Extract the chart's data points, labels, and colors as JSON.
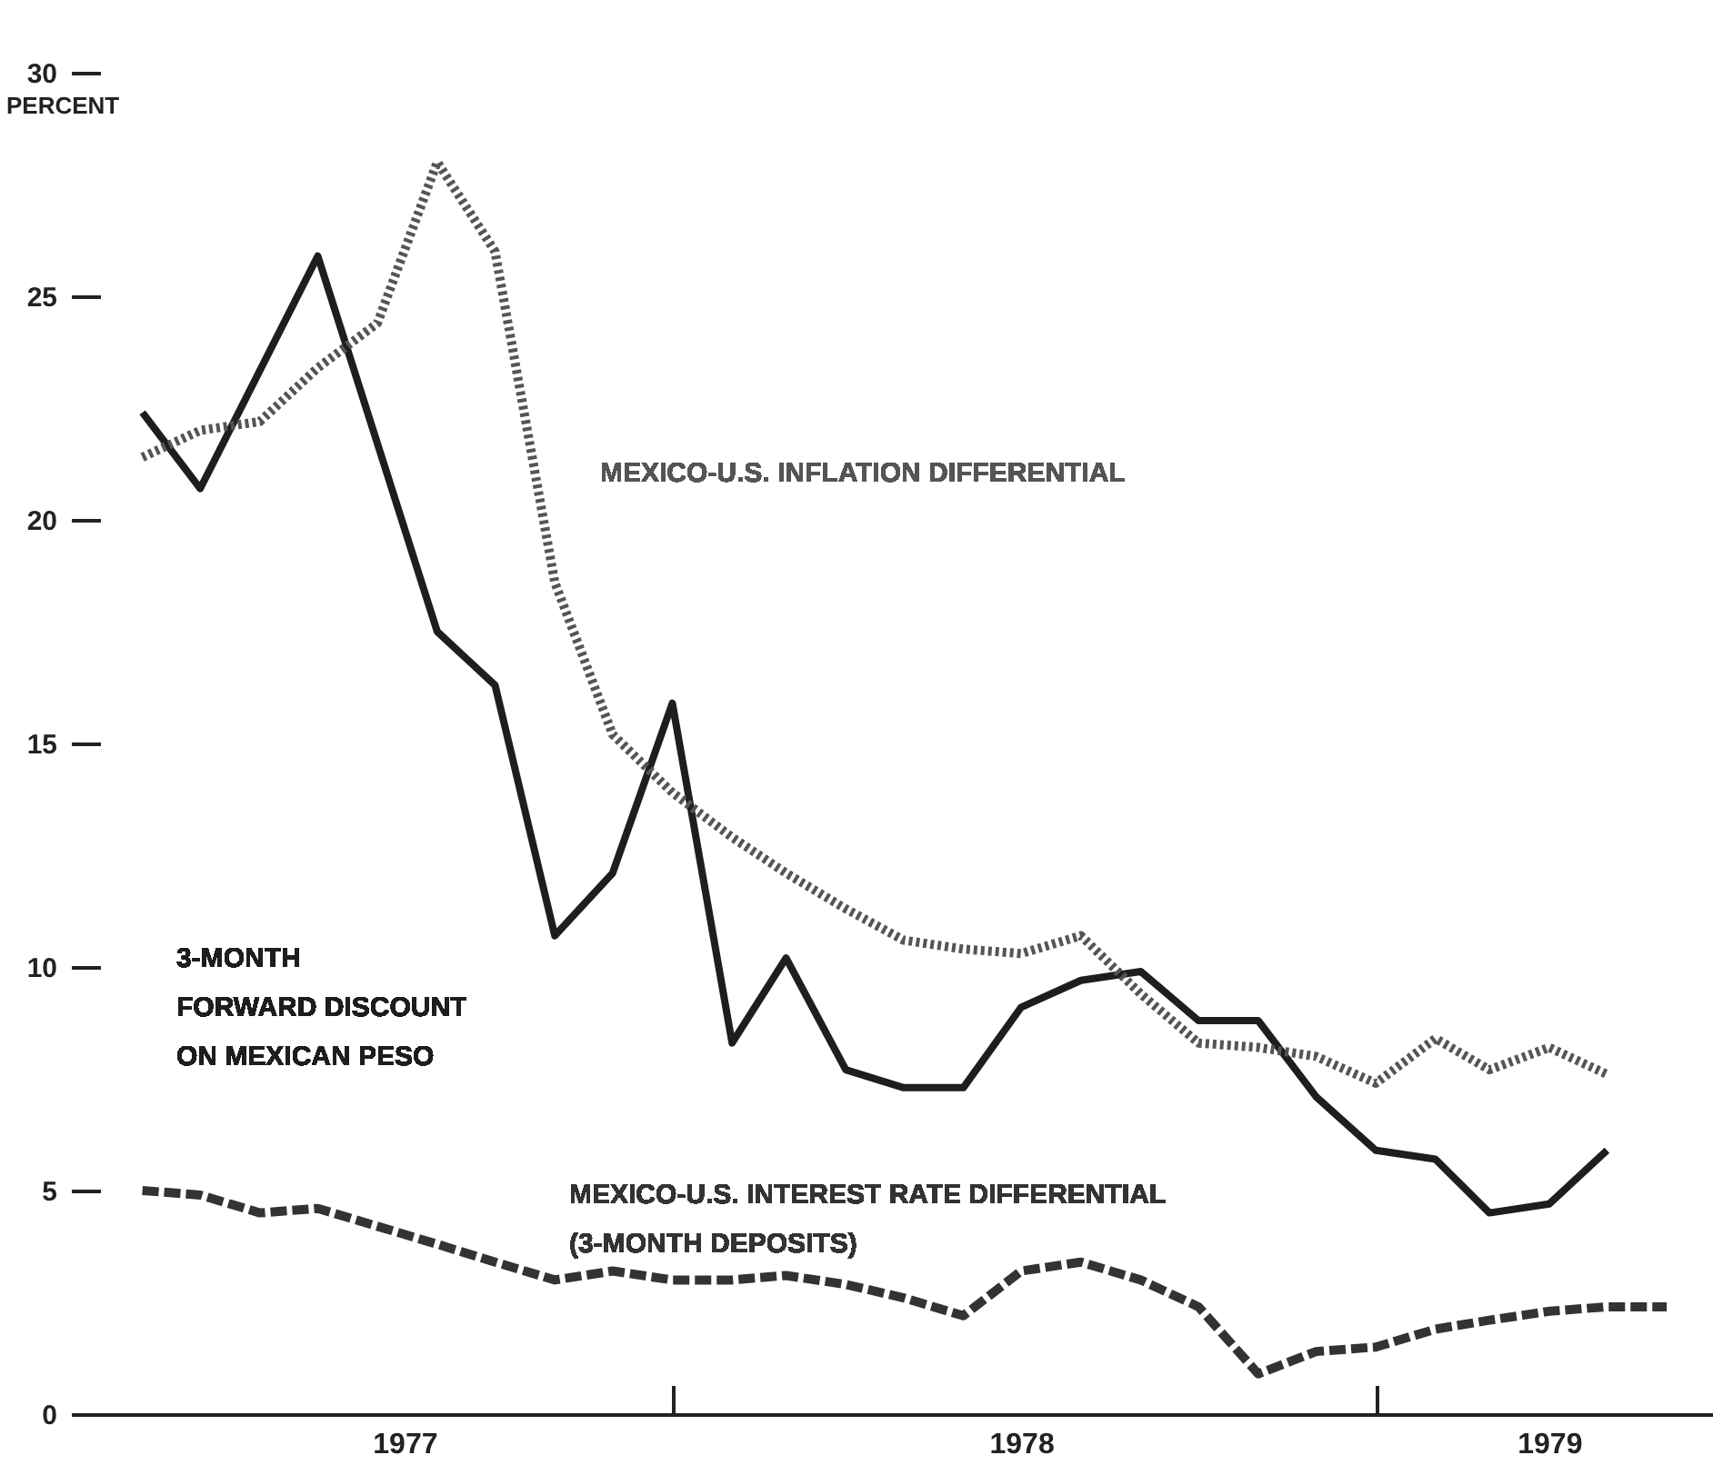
{
  "chart_data": {
    "type": "line",
    "ylabel": "PERCENT",
    "ylim": [
      0,
      30
    ],
    "yticks": [
      0,
      5,
      10,
      15,
      20,
      25,
      30
    ],
    "xlim": [
      "1977-03-10",
      "1979-06-25"
    ],
    "xticks": [
      {
        "value": "1977-08-15",
        "label": "1977"
      },
      {
        "value": "1978-01-01",
        "label": null
      },
      {
        "value": "1978-07-01",
        "label": "1978"
      },
      {
        "value": "1979-01-01",
        "label": null
      },
      {
        "value": "1979-04-01",
        "label": "1979"
      }
    ],
    "grid": false,
    "legend": false,
    "series": [
      {
        "name": "3-MONTH FORWARD DISCOUNT ON MEXICAN PESO",
        "color": "#1e1e1e",
        "line_style": "solid",
        "x": [
          "1977-04",
          "1977-05",
          "1977-07",
          "1977-09",
          "1977-10",
          "1977-11",
          "1977-12",
          "1978-01",
          "1978-02",
          "1978-03",
          "1978-04",
          "1978-05",
          "1978-06",
          "1978-07",
          "1978-08",
          "1978-09",
          "1978-10",
          "1978-11",
          "1978-12",
          "1979-01",
          "1979-02",
          "1979-03",
          "1979-04",
          "1979-05"
        ],
        "values": [
          22.4,
          20.7,
          25.9,
          17.5,
          16.3,
          10.7,
          12.1,
          15.9,
          8.3,
          10.2,
          7.7,
          7.3,
          7.3,
          9.1,
          9.7,
          9.9,
          8.8,
          8.8,
          7.1,
          5.9,
          5.7,
          4.5,
          4.7,
          5.9
        ]
      },
      {
        "name": "MEXICO-U.S. INFLATION DIFFERENTIAL",
        "color": "#555555",
        "line_style": "dotted",
        "x": [
          "1977-04",
          "1977-05",
          "1977-06",
          "1977-07",
          "1977-08",
          "1977-09",
          "1977-10",
          "1977-11",
          "1977-12",
          "1978-01",
          "1978-02",
          "1978-03",
          "1978-04",
          "1978-05",
          "1978-06",
          "1978-07",
          "1978-08",
          "1978-09",
          "1978-10",
          "1978-11",
          "1978-12",
          "1979-01",
          "1979-02",
          "1979-03",
          "1979-04",
          "1979-05"
        ],
        "values": [
          21.4,
          22.0,
          22.2,
          23.4,
          24.4,
          28.0,
          26.0,
          18.6,
          15.2,
          13.9,
          12.9,
          12.1,
          11.3,
          10.6,
          10.4,
          10.3,
          10.7,
          9.4,
          8.3,
          8.2,
          8.0,
          7.4,
          8.4,
          7.7,
          8.2,
          7.6
        ]
      },
      {
        "name": "MEXICO-U.S. INTEREST RATE DIFFERENTIAL (3-MONTH DEPOSITS)",
        "color": "#333333",
        "line_style": "dashed",
        "x": [
          "1977-04",
          "1977-05",
          "1977-06",
          "1977-07",
          "1977-08",
          "1977-09",
          "1977-10",
          "1977-11",
          "1977-12",
          "1978-01",
          "1978-02",
          "1978-03",
          "1978-04",
          "1978-05",
          "1978-06",
          "1978-07",
          "1978-08",
          "1978-09",
          "1978-10",
          "1978-11",
          "1978-12",
          "1979-01",
          "1979-02",
          "1979-03",
          "1979-04",
          "1979-05",
          "1979-06"
        ],
        "values": [
          5.0,
          4.9,
          4.5,
          4.6,
          4.2,
          3.8,
          3.4,
          3.0,
          3.2,
          3.0,
          3.0,
          3.1,
          2.9,
          2.6,
          2.2,
          3.2,
          3.4,
          3.0,
          2.4,
          0.9,
          1.4,
          1.5,
          1.9,
          2.1,
          2.3,
          2.4,
          2.4
        ]
      }
    ]
  }
}
